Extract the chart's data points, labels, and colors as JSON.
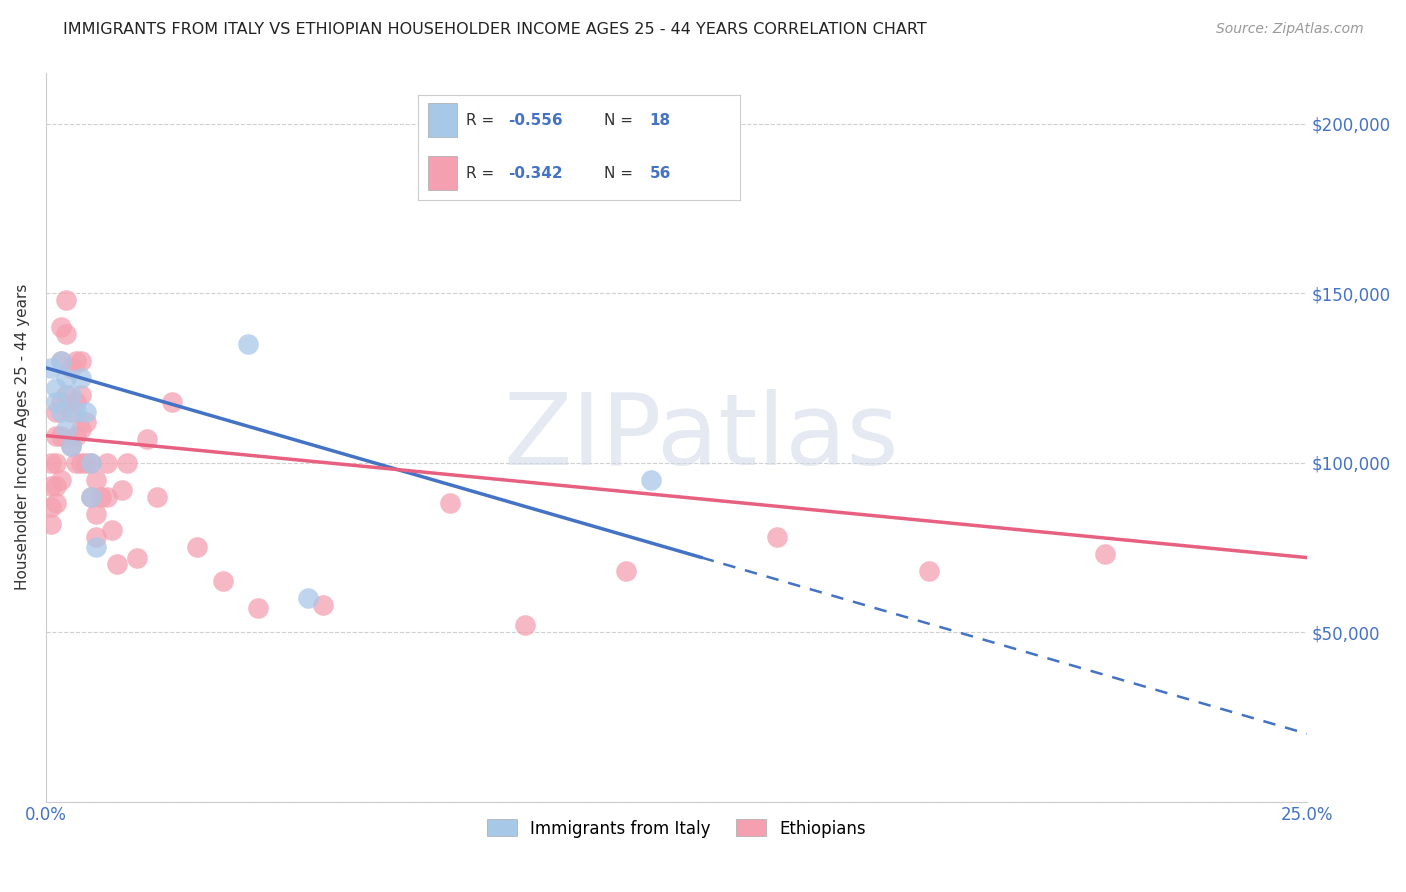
{
  "title": "IMMIGRANTS FROM ITALY VS ETHIOPIAN HOUSEHOLDER INCOME AGES 25 - 44 YEARS CORRELATION CHART",
  "source": "Source: ZipAtlas.com",
  "ylabel": "Householder Income Ages 25 - 44 years",
  "yticks": [
    0,
    50000,
    100000,
    150000,
    200000
  ],
  "ytick_labels": [
    "",
    "$50,000",
    "$100,000",
    "$150,000",
    "$200,000"
  ],
  "xlim": [
    0.0,
    0.25
  ],
  "ylim": [
    0,
    215000
  ],
  "watermark_text": "ZIPatlas",
  "legend_italy_R": "-0.556",
  "legend_italy_N": "18",
  "legend_ethiopian_R": "-0.342",
  "legend_ethiopian_N": "56",
  "italy_color": "#a8c8e8",
  "ethiopian_color": "#f4a0b0",
  "italy_line_color": "#4472c4",
  "ethiopian_line_color": "#e86080",
  "italy_scatter_x": [
    0.001,
    0.002,
    0.002,
    0.003,
    0.003,
    0.004,
    0.004,
    0.005,
    0.005,
    0.006,
    0.007,
    0.008,
    0.009,
    0.009,
    0.01,
    0.04,
    0.052,
    0.12
  ],
  "italy_scatter_y": [
    128000,
    122000,
    118000,
    130000,
    115000,
    125000,
    110000,
    120000,
    105000,
    115000,
    125000,
    115000,
    100000,
    90000,
    75000,
    135000,
    60000,
    95000
  ],
  "ethiopian_scatter_x": [
    0.001,
    0.001,
    0.001,
    0.001,
    0.002,
    0.002,
    0.002,
    0.002,
    0.002,
    0.003,
    0.003,
    0.003,
    0.003,
    0.003,
    0.004,
    0.004,
    0.004,
    0.005,
    0.005,
    0.005,
    0.006,
    0.006,
    0.006,
    0.006,
    0.007,
    0.007,
    0.007,
    0.007,
    0.008,
    0.008,
    0.009,
    0.009,
    0.01,
    0.01,
    0.01,
    0.011,
    0.012,
    0.012,
    0.013,
    0.014,
    0.015,
    0.016,
    0.018,
    0.02,
    0.022,
    0.025,
    0.03,
    0.035,
    0.042,
    0.055,
    0.08,
    0.095,
    0.115,
    0.145,
    0.175,
    0.21
  ],
  "ethiopian_scatter_y": [
    100000,
    93000,
    87000,
    82000,
    115000,
    108000,
    100000,
    93000,
    88000,
    140000,
    130000,
    118000,
    108000,
    95000,
    148000,
    138000,
    120000,
    128000,
    115000,
    105000,
    130000,
    118000,
    108000,
    100000,
    130000,
    120000,
    110000,
    100000,
    112000,
    100000,
    100000,
    90000,
    95000,
    85000,
    78000,
    90000,
    100000,
    90000,
    80000,
    70000,
    92000,
    100000,
    72000,
    107000,
    90000,
    118000,
    75000,
    65000,
    57000,
    58000,
    88000,
    52000,
    68000,
    78000,
    68000,
    73000
  ],
  "italy_trend_x0": 0.0,
  "italy_trend_x1": 0.13,
  "italy_trend_y0": 128000,
  "italy_trend_y1": 72000,
  "italy_trend_dashed_x0": 0.13,
  "italy_trend_dashed_x1": 0.25,
  "italy_trend_dashed_y0": 72000,
  "italy_trend_dashed_y1": 20000,
  "ethiopian_trend_x0": 0.0,
  "ethiopian_trend_x1": 0.25,
  "ethiopian_trend_y0": 108000,
  "ethiopian_trend_y1": 72000,
  "background_color": "#ffffff",
  "grid_color": "#d0d0d0"
}
